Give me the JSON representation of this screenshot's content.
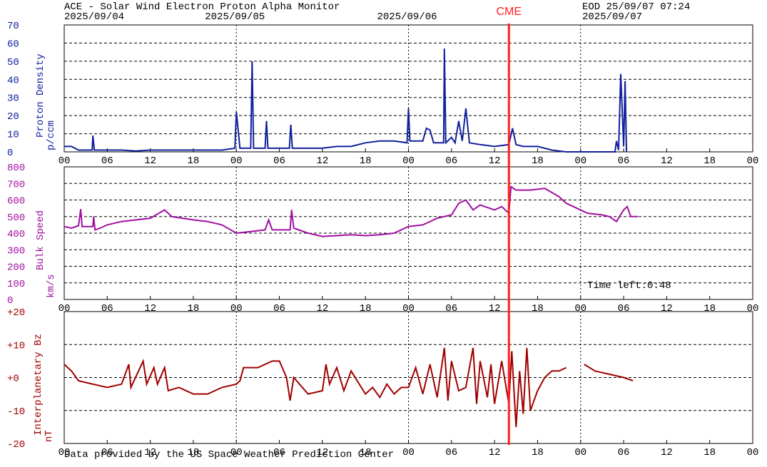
{
  "header": {
    "title": "ACE - Solar Wind Electron Proton Alpha Monitor",
    "eod": "EOD 25/09/07 07:24",
    "dates": [
      "2025/09/04",
      "2025/09/05",
      "2025/09/06",
      "2025/09/07"
    ]
  },
  "cme": {
    "label": "CME",
    "x": 62
  },
  "footer": "Data provided by the US Space Weather Prediction Center",
  "chart_data": [
    {
      "type": "line",
      "ylabel": "Proton Density",
      "yunit": "p/ccm",
      "color": "#10209c",
      "xlim": [
        0,
        96
      ],
      "ylim": [
        0,
        70
      ],
      "yticks": [
        0,
        10,
        20,
        30,
        40,
        50,
        60,
        70
      ],
      "xticks": [
        {
          "value": 0,
          "label": "00"
        },
        {
          "value": 6,
          "label": "06"
        },
        {
          "value": 12,
          "label": "12"
        },
        {
          "value": 18,
          "label": "18"
        },
        {
          "value": 24,
          "label": "00"
        },
        {
          "value": 30,
          "label": "06"
        },
        {
          "value": 36,
          "label": "12"
        },
        {
          "value": 42,
          "label": "18"
        },
        {
          "value": 48,
          "label": "00"
        },
        {
          "value": 54,
          "label": "06"
        },
        {
          "value": 60,
          "label": "12"
        },
        {
          "value": 66,
          "label": "18"
        },
        {
          "value": 72,
          "label": "00"
        },
        {
          "value": 78,
          "label": "06"
        },
        {
          "value": 84,
          "label": "12"
        },
        {
          "value": 90,
          "label": "18"
        },
        {
          "value": 96,
          "label": "00"
        }
      ],
      "x": [
        0,
        1,
        2,
        3.9,
        4,
        4.2,
        6,
        8,
        10,
        12,
        14,
        16,
        18,
        20,
        22,
        23.8,
        24,
        24.5,
        26,
        26.2,
        26.4,
        28,
        28.2,
        28.4,
        30,
        31.4,
        31.6,
        31.8,
        34,
        36,
        38,
        40,
        42,
        44,
        46,
        47.8,
        48,
        48.2,
        50,
        50.5,
        51,
        51.5,
        52.9,
        53,
        53.2,
        54,
        54.5,
        55,
        55.5,
        56,
        56.5,
        58,
        60,
        62,
        62.5,
        63,
        64,
        66,
        68,
        70,
        72,
        74,
        76,
        76.8,
        77,
        77.3,
        77.6,
        78,
        78.2,
        78.4
      ],
      "values": [
        3,
        3,
        1,
        1,
        9,
        1,
        1,
        1,
        0.5,
        1,
        1,
        1,
        1,
        1,
        1,
        2,
        22,
        2,
        2,
        50,
        2,
        2,
        17,
        2,
        2,
        2,
        15,
        2,
        2,
        2,
        3,
        3,
        5,
        6,
        6,
        5,
        24,
        6,
        6,
        13,
        12,
        5,
        5,
        57,
        5,
        8,
        5,
        17,
        6,
        24,
        5,
        4,
        3,
        4,
        13,
        4,
        3,
        3,
        1,
        0,
        0,
        0,
        0,
        0,
        6,
        1,
        43,
        3,
        39,
        0
      ]
    },
    {
      "type": "line",
      "ylabel": "Bulk Speed",
      "yunit": "km/s",
      "color": "#a010a0",
      "annotation": "Time left:0:48",
      "xlim": [
        0,
        96
      ],
      "ylim": [
        0,
        800
      ],
      "yticks": [
        0,
        100,
        200,
        300,
        400,
        500,
        600,
        700,
        800
      ],
      "xticks": [
        {
          "value": 0,
          "label": "00"
        },
        {
          "value": 6,
          "label": "06"
        },
        {
          "value": 12,
          "label": "12"
        },
        {
          "value": 18,
          "label": "18"
        },
        {
          "value": 24,
          "label": "00"
        },
        {
          "value": 30,
          "label": "06"
        },
        {
          "value": 36,
          "label": "12"
        },
        {
          "value": 42,
          "label": "18"
        },
        {
          "value": 48,
          "label": "00"
        },
        {
          "value": 54,
          "label": "06"
        },
        {
          "value": 60,
          "label": "12"
        },
        {
          "value": 66,
          "label": "18"
        },
        {
          "value": 72,
          "label": "00"
        },
        {
          "value": 78,
          "label": "06"
        },
        {
          "value": 84,
          "label": "12"
        },
        {
          "value": 90,
          "label": "18"
        },
        {
          "value": 96,
          "label": "00"
        }
      ],
      "x": [
        0,
        1,
        2,
        2.3,
        2.5,
        4,
        4.1,
        4.3,
        5,
        6,
        8,
        10,
        12,
        14,
        15,
        18,
        20,
        22,
        24,
        26,
        28,
        28.5,
        29,
        31.5,
        31.7,
        32,
        34,
        36,
        38,
        40,
        42,
        44,
        46,
        48,
        50,
        52,
        54,
        55,
        56,
        57,
        58,
        60,
        61,
        62,
        62.3,
        63,
        65,
        67,
        69,
        70,
        71,
        73,
        75,
        76,
        77,
        78,
        78.5,
        79,
        80
      ],
      "values": [
        440,
        430,
        445,
        545,
        440,
        440,
        500,
        420,
        430,
        450,
        470,
        480,
        490,
        540,
        500,
        480,
        470,
        450,
        400,
        410,
        420,
        480,
        420,
        420,
        540,
        430,
        400,
        380,
        385,
        390,
        385,
        390,
        400,
        440,
        450,
        490,
        510,
        580,
        600,
        540,
        570,
        540,
        560,
        520,
        680,
        660,
        660,
        670,
        620,
        580,
        560,
        520,
        510,
        500,
        470,
        540,
        560,
        500,
        500
      ]
    },
    {
      "type": "line",
      "ylabel": "Interplanetary Bz",
      "yunit": "nT",
      "color": "#a00000",
      "xlim": [
        0,
        96
      ],
      "ylim": [
        -20,
        20
      ],
      "yticks": [
        {
          "value": 20,
          "label": "+20"
        },
        {
          "value": 10,
          "label": "+10"
        },
        {
          "value": 0,
          "label": "+0"
        },
        -10,
        -20
      ],
      "xticks": [
        {
          "value": 0,
          "label": "00"
        },
        {
          "value": 6,
          "label": "06"
        },
        {
          "value": 12,
          "label": "12"
        },
        {
          "value": 18,
          "label": "18"
        },
        {
          "value": 24,
          "label": "00"
        },
        {
          "value": 30,
          "label": "06"
        },
        {
          "value": 36,
          "label": "12"
        },
        {
          "value": 42,
          "label": "18"
        },
        {
          "value": 48,
          "label": "00"
        },
        {
          "value": 54,
          "label": "06"
        },
        {
          "value": 60,
          "label": "12"
        },
        {
          "value": 66,
          "label": "18"
        },
        {
          "value": 72,
          "label": "00"
        },
        {
          "value": 78,
          "label": "06"
        },
        {
          "value": 84,
          "label": "12"
        },
        {
          "value": 90,
          "label": "18"
        },
        {
          "value": 96,
          "label": "00"
        }
      ],
      "x": [
        0,
        1,
        2,
        4,
        6,
        8,
        9,
        9.3,
        11,
        11.5,
        12.5,
        13,
        14,
        14.5,
        16,
        18,
        20,
        22,
        24,
        24.5,
        25,
        27,
        29,
        30,
        31,
        31.5,
        32,
        34,
        36,
        36.5,
        37,
        38,
        39,
        40,
        42,
        43,
        44,
        45,
        46,
        47,
        48,
        49,
        50,
        51,
        52,
        53,
        53.5,
        54,
        55,
        56,
        57,
        57.5,
        58,
        59,
        59.5,
        60,
        61,
        62,
        62.4,
        63,
        63.5,
        64,
        64.5,
        65,
        66,
        67,
        68,
        69,
        70,
        71,
        72.5,
        74,
        76,
        78,
        79.3
      ],
      "values": [
        4,
        2,
        -1,
        -2,
        -3,
        -2,
        4,
        -3,
        5,
        -2,
        3,
        -2,
        3,
        -4,
        -3,
        -5,
        -5,
        -3,
        -2,
        -1,
        3,
        3,
        5,
        5,
        0,
        -7,
        0,
        -5,
        -4,
        4,
        -2,
        3,
        -4,
        2,
        -5,
        -3,
        -6,
        -2,
        -5,
        -3,
        -3,
        3,
        -5,
        4,
        -6,
        9,
        -7,
        5,
        -4,
        -3,
        9,
        -8,
        5,
        -6,
        4,
        -8,
        5,
        -8,
        8,
        -15,
        2,
        -11,
        9,
        -10,
        -4,
        0,
        2,
        2,
        3,
        null,
        4,
        2,
        1,
        0,
        -1
      ]
    }
  ]
}
